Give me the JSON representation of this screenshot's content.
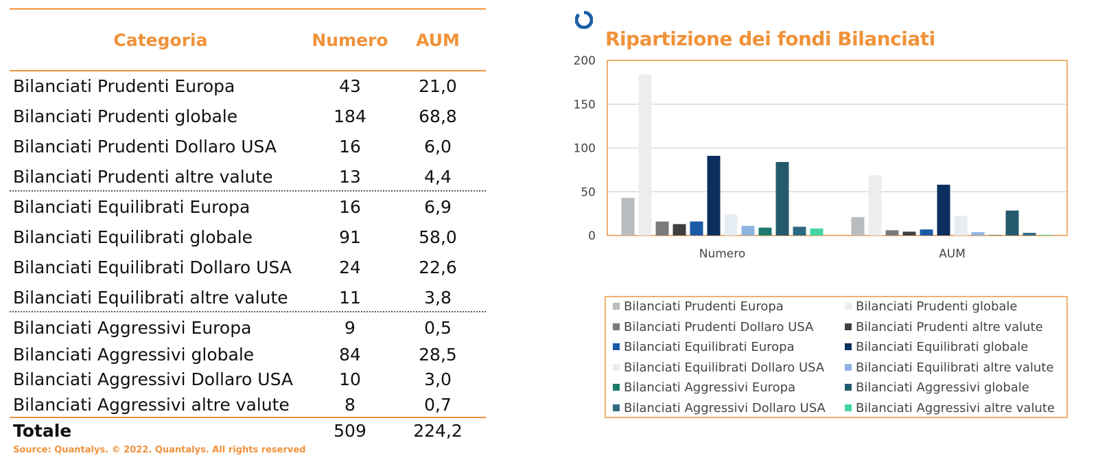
{
  "table": {
    "headers": {
      "categoria": "Categoria",
      "numero": "Numero",
      "aum": "AUM"
    },
    "rows": [
      {
        "cat": "Bilanciati Prudenti Europa",
        "num": "43",
        "aum": "21,0"
      },
      {
        "cat": "Bilanciati Prudenti globale",
        "num": "184",
        "aum": "68,8"
      },
      {
        "cat": "Bilanciati Prudenti Dollaro USA",
        "num": "16",
        "aum": "6,0"
      },
      {
        "cat": "Bilanciati Prudenti altre valute",
        "num": "13",
        "aum": "4,4"
      },
      {
        "cat": "Bilanciati Equilibrati Europa",
        "num": "16",
        "aum": "6,9"
      },
      {
        "cat": "Bilanciati Equilibrati globale",
        "num": "91",
        "aum": "58,0"
      },
      {
        "cat": "Bilanciati Equilibrati Dollaro USA",
        "num": "24",
        "aum": "22,6"
      },
      {
        "cat": "Bilanciati Equilibrati altre valute",
        "num": "11",
        "aum": "3,8"
      },
      {
        "cat": "Bilanciati Aggressivi Europa",
        "num": "9",
        "aum": "0,5"
      },
      {
        "cat": "Bilanciati Aggressivi globale",
        "num": "84",
        "aum": "28,5"
      },
      {
        "cat": "Bilanciati Aggressivi Dollaro USA",
        "num": "10",
        "aum": "3,0"
      },
      {
        "cat": "Bilanciati Aggressivi altre valute",
        "num": "8",
        "aum": "0,7"
      }
    ],
    "total": {
      "label": "Totale",
      "num": "509",
      "aum": "224,2"
    },
    "source": "Source: Quantalys. © 2022. Quantalys. All rights reserved"
  },
  "colors": {
    "accent": "#f0923a",
    "logo": "#1f5fa6"
  },
  "chart_data": {
    "type": "bar",
    "title": "Ripartizione dei fondi Bilanciati",
    "categories": [
      "Numero",
      "AUM"
    ],
    "ylim": [
      0,
      200
    ],
    "yticks": [
      0,
      50,
      100,
      150,
      200
    ],
    "grid": true,
    "legend_position": "bottom",
    "series": [
      {
        "name": "Bilanciati Prudenti Europa",
        "values": [
          43,
          21.0
        ],
        "color": "#b8bcbf"
      },
      {
        "name": "Bilanciati Prudenti globale",
        "values": [
          184,
          68.8
        ],
        "color": "#ededed"
      },
      {
        "name": "Bilanciati Prudenti Dollaro USA",
        "values": [
          16,
          6.0
        ],
        "color": "#7a7a7a"
      },
      {
        "name": "Bilanciati Prudenti altre valute",
        "values": [
          13,
          4.4
        ],
        "color": "#404040"
      },
      {
        "name": "Bilanciati Equilibrati Europa",
        "values": [
          16,
          6.9
        ],
        "color": "#1a5aa6"
      },
      {
        "name": "Bilanciati Equilibrati globale",
        "values": [
          91,
          58.0
        ],
        "color": "#0b2f5e"
      },
      {
        "name": "Bilanciati Equilibrati Dollaro USA",
        "values": [
          24,
          22.6
        ],
        "color": "#e6eef3"
      },
      {
        "name": "Bilanciati Equilibrati altre valute",
        "values": [
          11,
          3.8
        ],
        "color": "#8db3e0"
      },
      {
        "name": "Bilanciati Aggressivi Europa",
        "values": [
          9,
          0.5
        ],
        "color": "#1e7a6e"
      },
      {
        "name": "Bilanciati Aggressivi globale",
        "values": [
          84,
          28.5
        ],
        "color": "#255a6e"
      },
      {
        "name": "Bilanciati Aggressivi Dollaro USA",
        "values": [
          10,
          3.0
        ],
        "color": "#2c6a84"
      },
      {
        "name": "Bilanciati Aggressivi altre valute",
        "values": [
          8,
          0.7
        ],
        "color": "#43d6a0"
      }
    ]
  }
}
